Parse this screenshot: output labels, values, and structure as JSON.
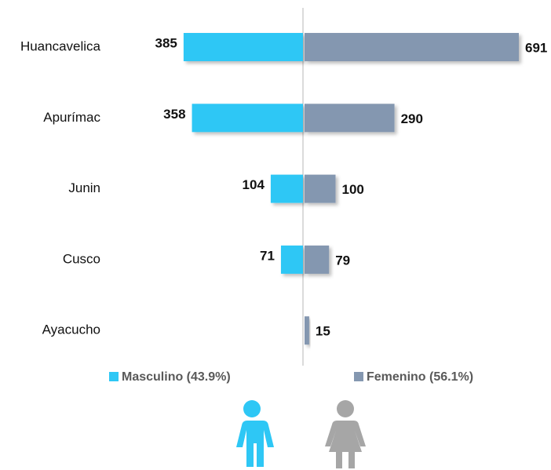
{
  "chart_data": {
    "type": "butterfly-bar",
    "categories": [
      "Huancavelica",
      "Apurímac",
      "Junin",
      "Cusco",
      "Ayacucho"
    ],
    "series": [
      {
        "name": "Masculino (43.9%)",
        "color": "#2ec7f5",
        "side": "left",
        "values": [
          385,
          358,
          104,
          71,
          null
        ]
      },
      {
        "name": "Femenino (56.1%)",
        "color": "#8497b0",
        "side": "right",
        "values": [
          691,
          290,
          100,
          79,
          15
        ]
      }
    ]
  }
}
